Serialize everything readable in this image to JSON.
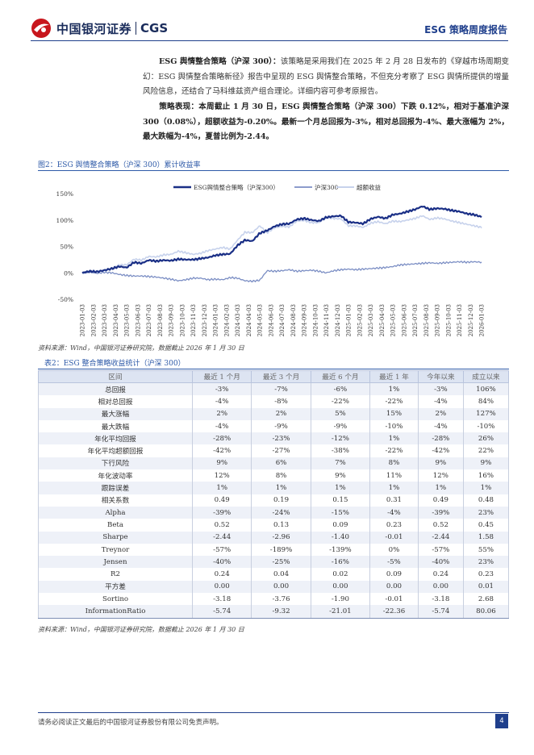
{
  "header": {
    "brand_cn": "中国银河证券",
    "brand_en": "CGS",
    "report_type": "ESG 策略周度报告"
  },
  "intro": {
    "lead": "ESG 舆情整合策略（沪深 300）：",
    "text": "该策略是采用我们在 2025 年 2 月 28 日发布的《穿越市场周期变幻：ESG 舆情整合策略新径》报告中呈现的 ESG 舆情整合策略，不但充分考察了 ESG 舆情所提供的增量风险信息，还结合了马科维兹资产组合理论。详细内容可参考原报告。"
  },
  "performance": {
    "text": "策略表现：本周截止 1 月 30 日，ESG 舆情整合策略（沪深 300）下跌 0.12%，相对于基准沪深 300（0.08%），超额收益为-0.20%。最新一个月总回报为-3%，相对总回报为-4%、最大涨幅为 2%，最大跌幅为-4%，夏普比例为-2.44。"
  },
  "figure": {
    "title": "图2：ESG 舆情整合策略（沪深 300）累计收益率",
    "source": "资料来源：Wind，中国银河证券研究院，数据截止 2026 年 1 月 30 日"
  },
  "chart_data": {
    "type": "line",
    "title": "",
    "xlabel": "",
    "ylabel": "",
    "ylim": [
      -50,
      150
    ],
    "yticks": [
      "150%",
      "100%",
      "50%",
      "0%",
      "-50%"
    ],
    "ytick_values": [
      150,
      100,
      50,
      0,
      -50
    ],
    "grid": false,
    "legend": "top-center",
    "x_ticks": [
      "2023-01-03",
      "2023-02-03",
      "2023-03-03",
      "2023-04-03",
      "2023-05-03",
      "2023-06-03",
      "2023-07-03",
      "2023-08-03",
      "2023-09-03",
      "2023-10-03",
      "2023-11-03",
      "2023-12-03",
      "2024-01-03",
      "2024-02-03",
      "2024-03-03",
      "2024-04-03",
      "2024-05-03",
      "2024-06-03",
      "2024-07-03",
      "2024-08-03",
      "2024-09-03",
      "2024-10-03",
      "2024-11-03",
      "2024-12-03",
      "2025-01-03",
      "2025-02-03",
      "2025-03-03",
      "2025-04-03",
      "2025-05-03",
      "2025-06-03",
      "2025-07-03",
      "2025-08-03",
      "2025-09-03",
      "2025-10-03",
      "2025-11-03",
      "2025-12-03",
      "2026-01-03"
    ],
    "series": [
      {
        "name": "ESG舆情整合策略（沪深300）",
        "color": "#1a2f86",
        "width": 2.2,
        "values": [
          0,
          3,
          2,
          5,
          8,
          12,
          10,
          20,
          18,
          24,
          22,
          24,
          23,
          26,
          25,
          25,
          27,
          29,
          33,
          35,
          36,
          52,
          62,
          60,
          75,
          80,
          88,
          92,
          93,
          101,
          103,
          100,
          98,
          105,
          107,
          108,
          96,
          95,
          93,
          102,
          106,
          103,
          110,
          112,
          116,
          120,
          126,
          120,
          122,
          121,
          118,
          116,
          112,
          110,
          106
        ]
      },
      {
        "name": "沪深300",
        "color": "#7b8ec4",
        "width": 1.3,
        "values": [
          0,
          2,
          -1,
          1,
          0,
          -3,
          -5,
          -6,
          -6,
          -7,
          -8,
          -10,
          -12,
          -15,
          -13,
          -10,
          -10,
          -13,
          -12,
          -13,
          -9,
          -10,
          -15,
          -16,
          -14,
          4,
          3,
          4,
          6,
          3,
          4,
          5,
          3,
          0,
          4,
          6,
          7,
          6,
          7,
          8,
          9,
          10,
          12,
          15,
          16,
          17,
          18,
          19,
          18,
          19,
          20,
          21,
          20,
          21,
          20
        ]
      },
      {
        "name": "超额收益",
        "color": "#c7d2ec",
        "width": 1.6,
        "values": [
          0,
          1,
          3,
          4,
          8,
          15,
          15,
          26,
          24,
          31,
          30,
          34,
          35,
          41,
          38,
          35,
          37,
          42,
          45,
          48,
          45,
          62,
          77,
          76,
          89,
          76,
          85,
          88,
          87,
          98,
          99,
          95,
          95,
          105,
          103,
          102,
          89,
          89,
          86,
          94,
          97,
          93,
          98,
          97,
          100,
          103,
          108,
          101,
          104,
          102,
          98,
          95,
          92,
          89,
          86
        ]
      }
    ]
  },
  "table": {
    "title": "表2：ESG 整合策略收益统计（沪深 300）",
    "headers": [
      "区间",
      "最近 1 个月",
      "最近 3 个月",
      "最近 6 个月",
      "最近 1 年",
      "今年以来",
      "成立以来"
    ],
    "rows": [
      [
        "总回报",
        "-3%",
        "-7%",
        "-6%",
        "1%",
        "-3%",
        "106%"
      ],
      [
        "相对总回报",
        "-4%",
        "-8%",
        "-22%",
        "-22%",
        "-4%",
        "84%"
      ],
      [
        "最大涨幅",
        "2%",
        "2%",
        "5%",
        "15%",
        "2%",
        "127%"
      ],
      [
        "最大跌幅",
        "-4%",
        "-9%",
        "-9%",
        "-10%",
        "-4%",
        "-10%"
      ],
      [
        "年化平均回报",
        "-28%",
        "-23%",
        "-12%",
        "1%",
        "-28%",
        "26%"
      ],
      [
        "年化平均超额回报",
        "-42%",
        "-27%",
        "-38%",
        "-22%",
        "-42%",
        "22%"
      ],
      [
        "下行风险",
        "9%",
        "6%",
        "7%",
        "8%",
        "9%",
        "9%"
      ],
      [
        "年化波动率",
        "12%",
        "8%",
        "9%",
        "11%",
        "12%",
        "16%"
      ],
      [
        "跟踪误差",
        "1%",
        "1%",
        "1%",
        "1%",
        "1%",
        "1%"
      ],
      [
        "相关系数",
        "0.49",
        "0.19",
        "0.15",
        "0.31",
        "0.49",
        "0.48"
      ],
      [
        "Alpha",
        "-39%",
        "-24%",
        "-15%",
        "-4%",
        "-39%",
        "23%"
      ],
      [
        "Beta",
        "0.52",
        "0.13",
        "0.09",
        "0.23",
        "0.52",
        "0.45"
      ],
      [
        "Sharpe",
        "-2.44",
        "-2.96",
        "-1.40",
        "-0.01",
        "-2.44",
        "1.58"
      ],
      [
        "Treynor",
        "-57%",
        "-189%",
        "-139%",
        "0%",
        "-57%",
        "55%"
      ],
      [
        "Jensen",
        "-40%",
        "-25%",
        "-16%",
        "-5%",
        "-40%",
        "23%"
      ],
      [
        "R2",
        "0.24",
        "0.04",
        "0.02",
        "0.09",
        "0.24",
        "0.23"
      ],
      [
        "平方差",
        "0.00",
        "0.00",
        "0.00",
        "0.00",
        "0.00",
        "0.01"
      ],
      [
        "Sortino",
        "-3.18",
        "-3.76",
        "-1.90",
        "-0.01",
        "-3.18",
        "2.68"
      ],
      [
        "InformationRatio",
        "-5.74",
        "-9.32",
        "-21.01",
        "-22.36",
        "-5.74",
        "80.06"
      ]
    ],
    "source": "资料来源：Wind，中国银河证券研究院，数据截止 2026 年 1 月 30 日"
  },
  "footer": {
    "disclaimer": "请务必阅读正文最后的中国银河证券股份有限公司免责声明。",
    "page": "4"
  }
}
